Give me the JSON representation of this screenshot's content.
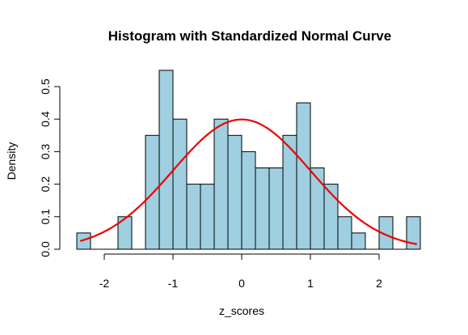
{
  "chart_data": {
    "type": "bar",
    "title": "Histogram with Standardized Normal Curve",
    "xlabel": "z_scores",
    "ylabel": "Density",
    "xlim": [
      -2.5,
      2.6
    ],
    "ylim": [
      0,
      0.55
    ],
    "x_ticks": [
      -2,
      -1,
      0,
      1,
      2
    ],
    "x_tick_labels": [
      "-2",
      "-1",
      "0",
      "1",
      "2"
    ],
    "y_ticks": [
      0.0,
      0.1,
      0.2,
      0.3,
      0.4,
      0.5
    ],
    "y_tick_labels": [
      "0.0",
      "0.1",
      "0.2",
      "0.3",
      "0.4",
      "0.5"
    ],
    "bin_width": 0.2,
    "bins": [
      {
        "start": -2.4,
        "end": -2.2,
        "density": 0.05
      },
      {
        "start": -2.2,
        "end": -2.0,
        "density": 0.0
      },
      {
        "start": -2.0,
        "end": -1.8,
        "density": 0.0
      },
      {
        "start": -1.8,
        "end": -1.6,
        "density": 0.1
      },
      {
        "start": -1.6,
        "end": -1.4,
        "density": 0.0
      },
      {
        "start": -1.4,
        "end": -1.2,
        "density": 0.35
      },
      {
        "start": -1.2,
        "end": -1.0,
        "density": 0.55
      },
      {
        "start": -1.0,
        "end": -0.8,
        "density": 0.4
      },
      {
        "start": -0.8,
        "end": -0.6,
        "density": 0.2
      },
      {
        "start": -0.6,
        "end": -0.4,
        "density": 0.2
      },
      {
        "start": -0.4,
        "end": -0.2,
        "density": 0.4
      },
      {
        "start": -0.2,
        "end": 0.0,
        "density": 0.35
      },
      {
        "start": 0.0,
        "end": 0.2,
        "density": 0.3
      },
      {
        "start": 0.2,
        "end": 0.4,
        "density": 0.25
      },
      {
        "start": 0.4,
        "end": 0.6,
        "density": 0.25
      },
      {
        "start": 0.6,
        "end": 0.8,
        "density": 0.35
      },
      {
        "start": 0.8,
        "end": 1.0,
        "density": 0.45
      },
      {
        "start": 1.0,
        "end": 1.2,
        "density": 0.25
      },
      {
        "start": 1.2,
        "end": 1.4,
        "density": 0.2
      },
      {
        "start": 1.4,
        "end": 1.6,
        "density": 0.1
      },
      {
        "start": 1.6,
        "end": 1.8,
        "density": 0.05
      },
      {
        "start": 1.8,
        "end": 2.0,
        "density": 0.0
      },
      {
        "start": 2.0,
        "end": 2.2,
        "density": 0.1
      },
      {
        "start": 2.2,
        "end": 2.4,
        "density": 0.0
      },
      {
        "start": 2.4,
        "end": 2.6,
        "density": 0.1
      }
    ],
    "curve": {
      "type": "normal_density",
      "mean": 0,
      "sd": 1,
      "x_range": [
        -2.35,
        2.55
      ]
    },
    "grid": false,
    "legend": "none"
  },
  "colors": {
    "bar_fill": "#9fcfe0",
    "bar_stroke": "#000000",
    "curve": "#ee0000",
    "axis": "#000000",
    "background": "#ffffff"
  }
}
